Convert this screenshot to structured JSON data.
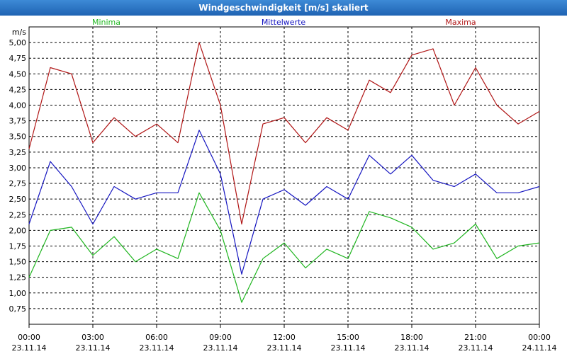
{
  "window": {
    "title": "Windgeschwindigkeit [m/s] skaliert"
  },
  "chart_data": {
    "type": "line",
    "ylabel": "m/s",
    "ylim": [
      0.5,
      5.25
    ],
    "yticks": [
      "0,75",
      "1,00",
      "1,25",
      "1,50",
      "1,75",
      "2,00",
      "2,25",
      "2,50",
      "2,75",
      "3,00",
      "3,25",
      "3,50",
      "3,75",
      "4,00",
      "4,25",
      "4,50",
      "4,75",
      "5,00"
    ],
    "xlim": [
      "23.11.14 00:00",
      "24.11.14 00:00"
    ],
    "xticks": [
      {
        "time": "00:00",
        "date": "23.11.14"
      },
      {
        "time": "03:00",
        "date": "23.11.14"
      },
      {
        "time": "06:00",
        "date": "23.11.14"
      },
      {
        "time": "09:00",
        "date": "23.11.14"
      },
      {
        "time": "12:00",
        "date": "23.11.14"
      },
      {
        "time": "15:00",
        "date": "23.11.14"
      },
      {
        "time": "18:00",
        "date": "23.11.14"
      },
      {
        "time": "21:00",
        "date": "23.11.14"
      },
      {
        "time": "00:00",
        "date": "24.11.14"
      }
    ],
    "grid": true,
    "legend_position": "top",
    "x_hours": [
      0,
      1,
      2,
      3,
      4,
      5,
      6,
      7,
      8,
      9,
      10,
      11,
      12,
      13,
      14,
      15,
      16,
      17,
      18,
      19,
      20,
      21,
      22,
      23,
      24
    ],
    "series": [
      {
        "name": "Minima",
        "color": "#1fb51f",
        "values": [
          1.25,
          2.0,
          2.05,
          1.6,
          1.9,
          1.5,
          1.7,
          1.55,
          2.6,
          2.0,
          0.85,
          1.55,
          1.8,
          1.4,
          1.7,
          1.55,
          2.3,
          2.2,
          2.05,
          1.7,
          1.8,
          2.1,
          1.55,
          1.75,
          1.8
        ]
      },
      {
        "name": "Mittelwerte",
        "color": "#1515c0",
        "values": [
          2.1,
          3.1,
          2.7,
          2.1,
          2.7,
          2.5,
          2.6,
          2.6,
          3.6,
          2.9,
          1.3,
          2.5,
          2.65,
          2.4,
          2.7,
          2.5,
          3.2,
          2.9,
          3.2,
          2.8,
          2.7,
          2.9,
          2.6,
          2.6,
          2.7
        ]
      },
      {
        "name": "Maxima",
        "color": "#b01515",
        "values": [
          3.3,
          4.6,
          4.5,
          3.4,
          3.8,
          3.5,
          3.7,
          3.4,
          5.0,
          4.0,
          2.1,
          3.7,
          3.8,
          3.4,
          3.8,
          3.6,
          4.4,
          4.2,
          4.8,
          4.9,
          4.0,
          4.6,
          4.0,
          3.7,
          3.9
        ]
      }
    ]
  }
}
